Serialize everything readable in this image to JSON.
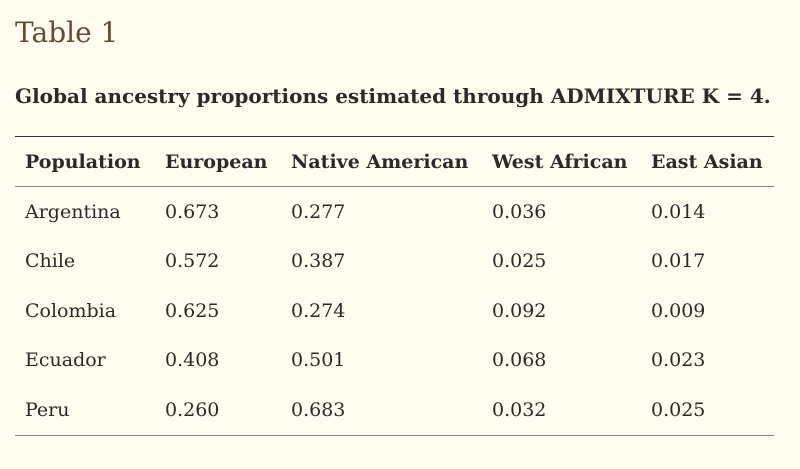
{
  "table": {
    "label": "Table 1",
    "caption": "Global ancestry proportions estimated through ADMIXTURE K = 4.",
    "headers": [
      "Population",
      "European",
      "Native American",
      "West African",
      "East Asian"
    ],
    "rows": [
      [
        "Argentina",
        "0.673",
        "0.277",
        "0.036",
        "0.014"
      ],
      [
        "Chile",
        "0.572",
        "0.387",
        "0.025",
        "0.017"
      ],
      [
        "Colombia",
        "0.625",
        "0.274",
        "0.092",
        "0.009"
      ],
      [
        "Ecuador",
        "0.408",
        "0.501",
        "0.068",
        "0.023"
      ],
      [
        "Peru",
        "0.260",
        "0.683",
        "0.032",
        "0.025"
      ]
    ]
  }
}
